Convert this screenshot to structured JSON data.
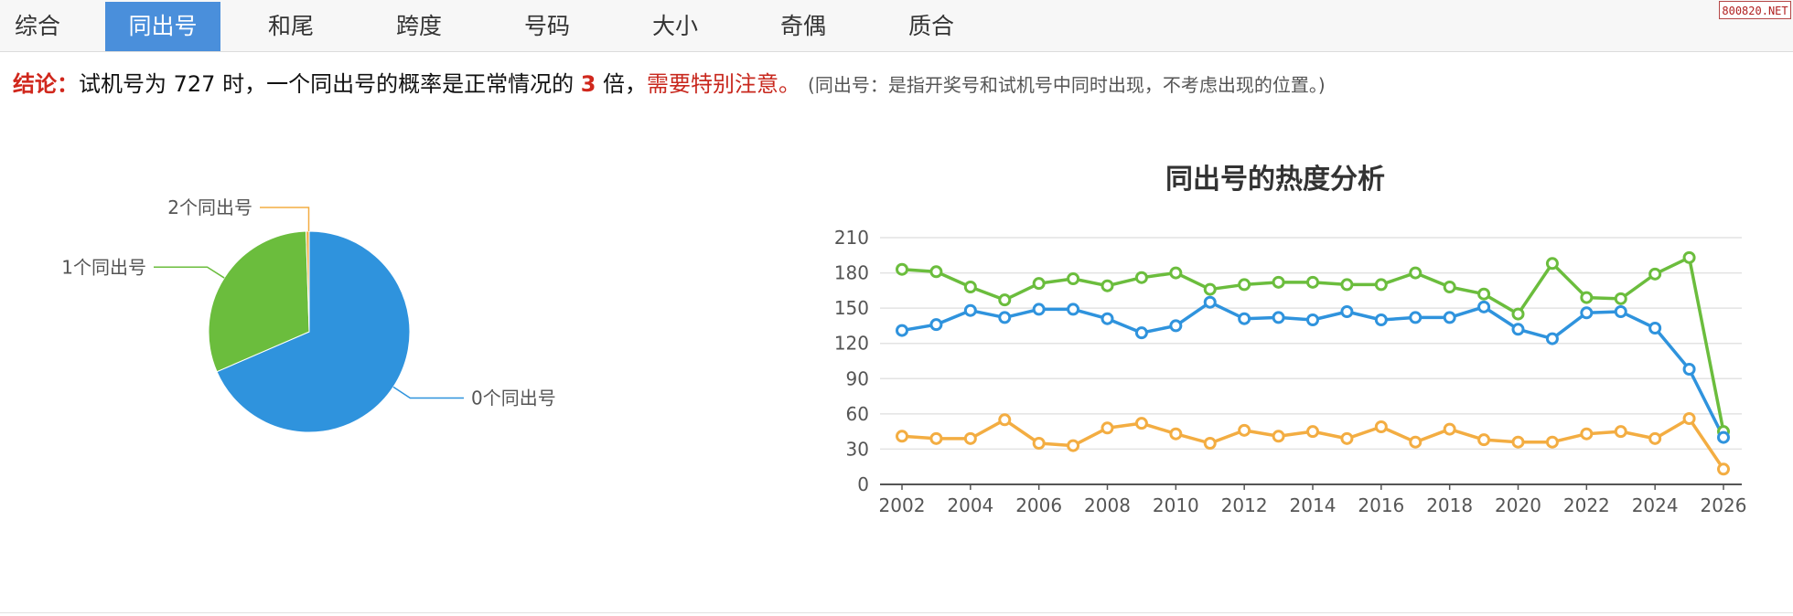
{
  "tabs": [
    {
      "label": "综合",
      "active": false
    },
    {
      "label": "同出号",
      "active": true
    },
    {
      "label": "和尾",
      "active": false
    },
    {
      "label": "跨度",
      "active": false
    },
    {
      "label": "号码",
      "active": false
    },
    {
      "label": "大小",
      "active": false
    },
    {
      "label": "奇偶",
      "active": false
    },
    {
      "label": "质合",
      "active": false
    }
  ],
  "brand": "800820.NET",
  "conclusion": {
    "lead": "结论：",
    "part1": "试机号为 727 时，一个同出号的概率是正常情况的 ",
    "multiplier": "3",
    "part2": " 倍，",
    "warning": "需要特别注意。",
    "note": "(同出号：是指开奖号和试机号中同时出现，不考虑出现的位置。)"
  },
  "colors": {
    "blue": "#2f93dd",
    "green": "#6bbd3d",
    "orange": "#f3ad42",
    "accent_red": "#d0271c",
    "tab_active": "#4a8fdb"
  },
  "chart_data": [
    {
      "type": "pie",
      "slices": [
        {
          "label": "0个同出号",
          "value": 68.5,
          "color": "#2f93dd"
        },
        {
          "label": "1个同出号",
          "value": 31.0,
          "color": "#6bbd3d"
        },
        {
          "label": "2个同出号",
          "value": 0.5,
          "color": "#f3ad42"
        }
      ]
    },
    {
      "type": "line",
      "title": "同出号的热度分析",
      "x": [
        2002,
        2003,
        2004,
        2005,
        2006,
        2007,
        2008,
        2009,
        2010,
        2011,
        2012,
        2013,
        2014,
        2015,
        2016,
        2017,
        2018,
        2019,
        2020,
        2021,
        2022,
        2023,
        2024,
        2025,
        2026
      ],
      "xticks": [
        2002,
        2004,
        2006,
        2008,
        2010,
        2012,
        2014,
        2016,
        2018,
        2020,
        2022,
        2024,
        2026
      ],
      "yticks": [
        0,
        30,
        60,
        90,
        120,
        150,
        180,
        210
      ],
      "ylim": [
        0,
        210
      ],
      "grid": true,
      "series": [
        {
          "color": "#6bbd3d",
          "values": [
            183,
            181,
            168,
            157,
            171,
            175,
            169,
            176,
            180,
            166,
            170,
            172,
            172,
            170,
            170,
            180,
            168,
            162,
            145,
            188,
            159,
            158,
            179,
            193,
            45
          ]
        },
        {
          "color": "#2f93dd",
          "values": [
            131,
            136,
            148,
            142,
            149,
            149,
            141,
            129,
            135,
            155,
            141,
            142,
            140,
            147,
            140,
            142,
            142,
            151,
            132,
            124,
            146,
            147,
            133,
            98,
            40
          ]
        },
        {
          "color": "#f3ad42",
          "values": [
            41,
            39,
            39,
            55,
            35,
            33,
            48,
            52,
            43,
            35,
            46,
            41,
            45,
            39,
            49,
            36,
            47,
            38,
            36,
            36,
            43,
            45,
            39,
            56,
            13
          ]
        }
      ]
    }
  ]
}
